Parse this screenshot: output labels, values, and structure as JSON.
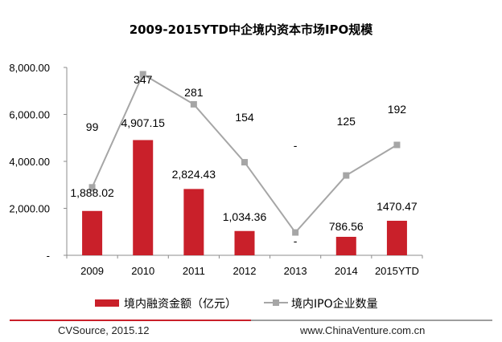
{
  "chart_data": {
    "type": "bar",
    "title": "2009-2015YTD中企境内资本市场IPO规模",
    "categories": [
      "2009",
      "2010",
      "2011",
      "2012",
      "2013",
      "2014",
      "2015YTD"
    ],
    "ylim": [
      0,
      8000
    ],
    "y_ticks": [
      0,
      2000,
      4000,
      6000,
      8000
    ],
    "y_tick_labels": [
      "-",
      "2,000.00",
      "4,000.00",
      "6,000.00",
      "8,000.00"
    ],
    "grid": false,
    "legend_position": "bottom",
    "series": [
      {
        "name": "境内融资金额（亿元）",
        "type": "bar",
        "color": "#c9202a",
        "values": [
          1888.02,
          4907.15,
          2824.43,
          1034.36,
          0,
          786.56,
          1470.47
        ],
        "labels": [
          "1,888.02",
          "4,907.15",
          "2,824.43",
          "1,034.36",
          "-",
          "786.56",
          "1470.47"
        ]
      },
      {
        "name": "境内IPO企业数量",
        "type": "line",
        "color": "#a6a6a6",
        "values": [
          99,
          347,
          281,
          154,
          0,
          125,
          192
        ],
        "labels": [
          "99",
          "347",
          "281",
          "154",
          "-",
          "125",
          "192"
        ]
      }
    ]
  },
  "footer": {
    "source": "CVSource, 2015.12",
    "website": "www.ChinaVenture.com.cn",
    "accent_color": "#c9202a",
    "rule_color": "#9e9e9e"
  }
}
